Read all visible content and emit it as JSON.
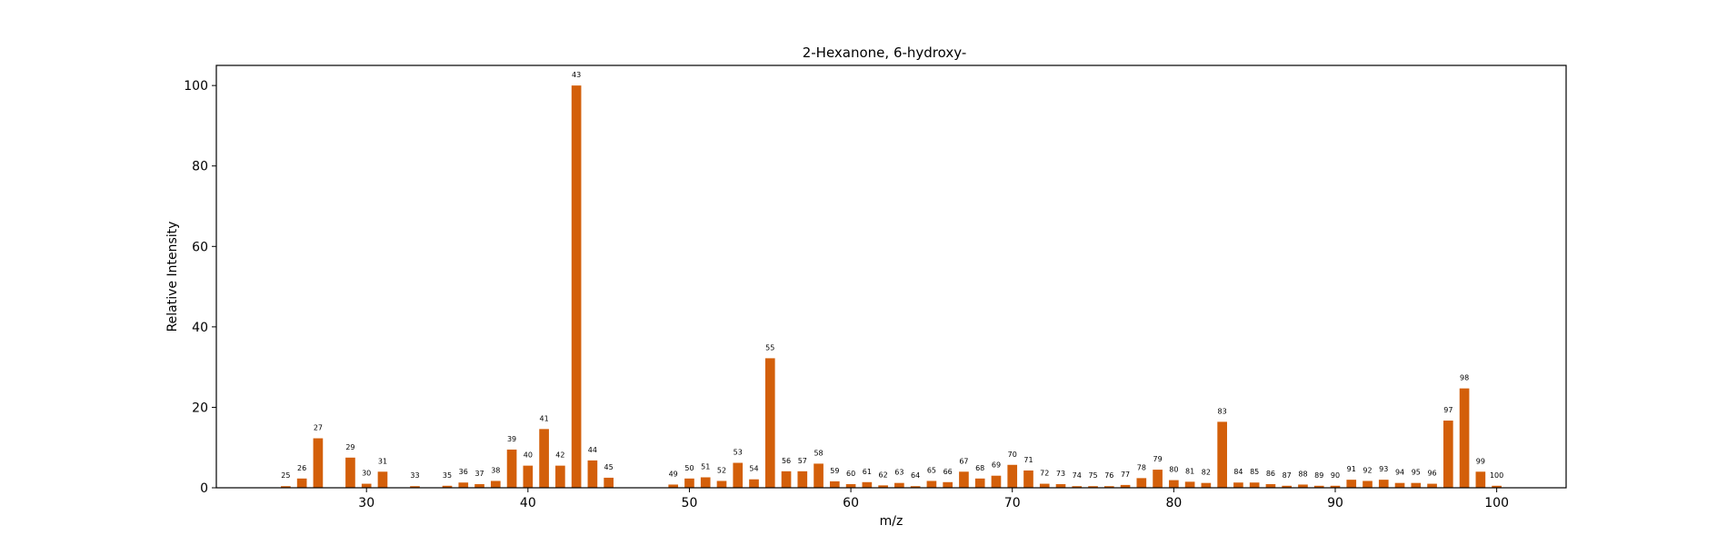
{
  "chart_data": {
    "type": "bar",
    "title": "2-Hexanone, 6-hydroxy-",
    "xlabel": "m/z",
    "ylabel": "Relative Intensity",
    "xlim": [
      20.7,
      104.3
    ],
    "ylim": [
      0,
      105
    ],
    "xticks": [
      30,
      40,
      50,
      60,
      70,
      80,
      90,
      100
    ],
    "yticks": [
      0,
      20,
      40,
      60,
      80,
      100
    ],
    "bar_color": "#d35f0a",
    "grid": false,
    "series": [
      {
        "x": [
          25,
          26,
          27,
          29,
          30,
          31,
          33,
          35,
          36,
          37,
          38,
          39,
          40,
          41,
          42,
          43,
          44,
          45,
          49,
          50,
          51,
          52,
          53,
          54,
          55,
          56,
          57,
          58,
          59,
          60,
          61,
          62,
          63,
          64,
          65,
          66,
          67,
          68,
          69,
          70,
          71,
          72,
          73,
          74,
          75,
          76,
          77,
          78,
          79,
          80,
          81,
          82,
          83,
          84,
          85,
          86,
          87,
          88,
          89,
          90,
          91,
          92,
          93,
          94,
          95,
          96,
          97,
          98,
          99,
          100
        ],
        "values": [
          0.4,
          2.3,
          12.3,
          7.5,
          1.0,
          4.0,
          0.4,
          0.5,
          1.3,
          0.9,
          1.7,
          9.5,
          5.5,
          14.6,
          5.5,
          100,
          6.8,
          2.5,
          0.8,
          2.3,
          2.6,
          1.7,
          6.2,
          2.1,
          32.2,
          4.1,
          4.1,
          6.0,
          1.6,
          0.9,
          1.4,
          0.6,
          1.2,
          0.4,
          1.7,
          1.4,
          4.0,
          2.3,
          3.0,
          5.7,
          4.3,
          1.0,
          0.9,
          0.4,
          0.4,
          0.4,
          0.7,
          2.4,
          4.5,
          1.9,
          1.5,
          1.2,
          16.4,
          1.3,
          1.3,
          0.9,
          0.5,
          0.8,
          0.5,
          0.5,
          2.0,
          1.7,
          2.0,
          1.2,
          1.2,
          1.0,
          16.7,
          24.7,
          4.0,
          0.5
        ]
      }
    ]
  }
}
